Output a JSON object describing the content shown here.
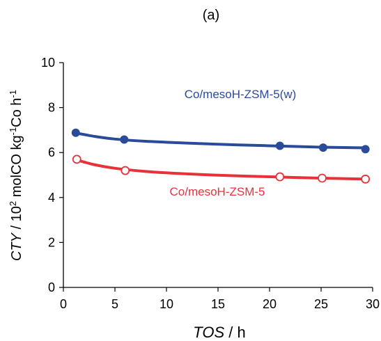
{
  "chart_data": {
    "type": "scatter",
    "title": "(a)",
    "xlabel": {
      "italic": "TOS",
      "rest": " / h"
    },
    "ylabel": {
      "italic": "CTY",
      "parts": [
        {
          "t": " / 10",
          "sup": false
        },
        {
          "t": "2",
          "sup": true
        },
        {
          "t": " molCO kg",
          "sup": false
        },
        {
          "t": "-1",
          "sup": true
        },
        {
          "t": "Co h",
          "sup": false
        },
        {
          "t": "-1",
          "sup": true
        }
      ]
    },
    "xlim": [
      0,
      30
    ],
    "ylim": [
      0,
      10
    ],
    "xticks": [
      0,
      5,
      10,
      15,
      20,
      25,
      30
    ],
    "yticks": [
      0,
      2,
      4,
      6,
      8,
      10
    ],
    "grid": false,
    "series": [
      {
        "name": "Co/mesoH-ZSM-5(w)",
        "color": "#2a4a9a",
        "marker": "filled-circle",
        "x": [
          1.2,
          5.9,
          21.0,
          25.2,
          29.3
        ],
        "y": [
          6.88,
          6.58,
          6.3,
          6.22,
          6.15
        ],
        "fit": [
          [
            1.2,
            6.87
          ],
          [
            3,
            6.72
          ],
          [
            5,
            6.6
          ],
          [
            8,
            6.5
          ],
          [
            12,
            6.42
          ],
          [
            17,
            6.34
          ],
          [
            21,
            6.29
          ],
          [
            25,
            6.24
          ],
          [
            29.3,
            6.21
          ]
        ]
      },
      {
        "name": "Co/mesoH-ZSM-5",
        "color": "#e8323a",
        "marker": "open-circle",
        "x": [
          1.3,
          6.0,
          21.0,
          25.1,
          29.3
        ],
        "y": [
          5.7,
          5.2,
          4.92,
          4.86,
          4.82
        ],
        "fit": [
          [
            1.2,
            5.68
          ],
          [
            3,
            5.46
          ],
          [
            5,
            5.3
          ],
          [
            8,
            5.16
          ],
          [
            12,
            5.05
          ],
          [
            17,
            4.96
          ],
          [
            21,
            4.91
          ],
          [
            25,
            4.86
          ],
          [
            29.3,
            4.82
          ]
        ]
      }
    ],
    "annotations": [
      {
        "text": "Co/mesoH-ZSM-5(w)",
        "series": 0
      },
      {
        "text": "Co/mesoH-ZSM-5",
        "series": 1
      }
    ]
  }
}
